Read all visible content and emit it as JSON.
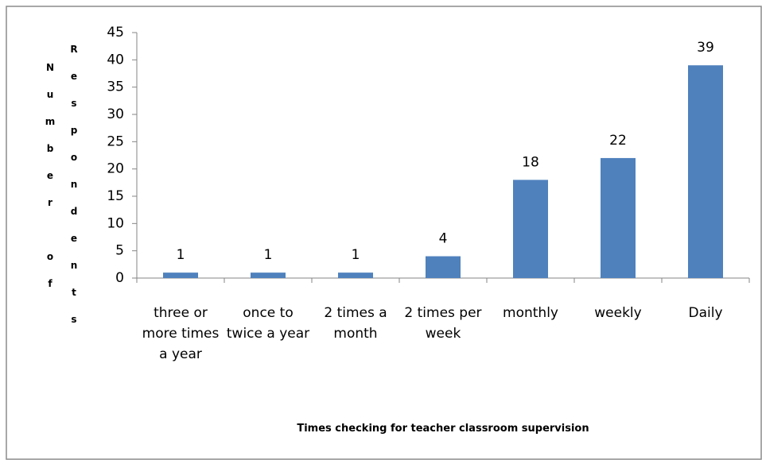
{
  "chart_data": {
    "type": "bar",
    "x_label": "Times checking for teacher classroom supervision",
    "y_label": "Number of Respondents",
    "categories": [
      "three or more times a year",
      "once to twice a year",
      "2 times a month",
      "2 times per week",
      "monthly",
      "weekly",
      "Daily"
    ],
    "values": [
      1,
      1,
      1,
      4,
      18,
      22,
      39
    ],
    "color": "#4f81bd",
    "ylim": [
      0,
      45
    ],
    "yticks": [
      0,
      5,
      10,
      15,
      20,
      25,
      30,
      35,
      40,
      45
    ],
    "grid": false
  }
}
